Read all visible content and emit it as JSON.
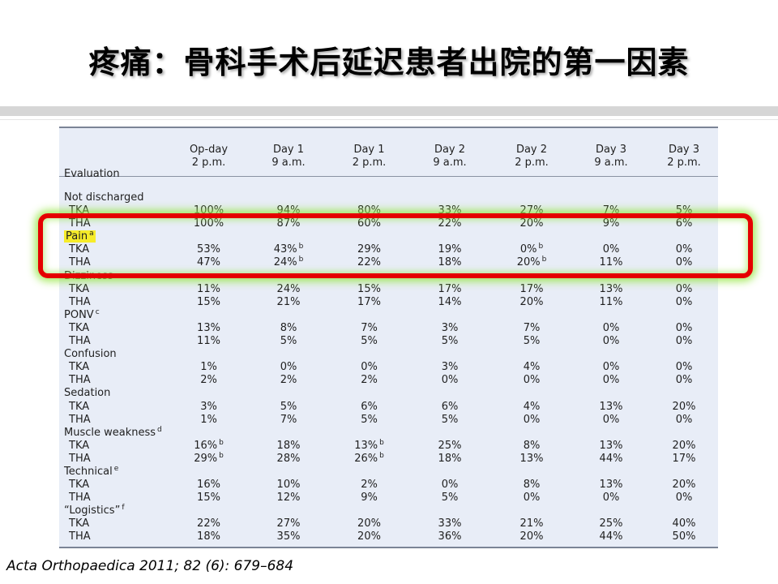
{
  "slide": {
    "title": "疼痛：骨科手术后延迟患者出院的第一因素",
    "citation": "Acta Orthopaedica 2011; 82 (6): 679–684"
  },
  "table": {
    "columns": [
      {
        "line1": "Evaluation",
        "line2": ""
      },
      {
        "line1": "Op-day",
        "line2": "2 p.m."
      },
      {
        "line1": "Day 1",
        "line2": "9 a.m."
      },
      {
        "line1": "Day 1",
        "line2": "2 p.m."
      },
      {
        "line1": "Day 2",
        "line2": "9 a.m."
      },
      {
        "line1": "Day 2",
        "line2": "2 p.m."
      },
      {
        "line1": "Day 3",
        "line2": "9 a.m."
      },
      {
        "line1": "Day 3",
        "line2": "2 p.m."
      }
    ],
    "groups": [
      {
        "label": "Not discharged",
        "sup": "",
        "highlight": false,
        "rows": [
          {
            "label": "TKA",
            "cells": [
              [
                "100%",
                ""
              ],
              [
                "94%",
                ""
              ],
              [
                "80%",
                ""
              ],
              [
                "33%",
                ""
              ],
              [
                "27%",
                ""
              ],
              [
                "7%",
                ""
              ],
              [
                "5%",
                ""
              ]
            ]
          },
          {
            "label": "THA",
            "cells": [
              [
                "100%",
                ""
              ],
              [
                "87%",
                ""
              ],
              [
                "60%",
                ""
              ],
              [
                "22%",
                ""
              ],
              [
                "20%",
                ""
              ],
              [
                "9%",
                ""
              ],
              [
                "6%",
                ""
              ]
            ]
          }
        ]
      },
      {
        "label": "Pain",
        "sup": "a",
        "highlight": true,
        "rows": [
          {
            "label": "TKA",
            "cells": [
              [
                "53%",
                ""
              ],
              [
                "43%",
                "b"
              ],
              [
                "29%",
                ""
              ],
              [
                "19%",
                ""
              ],
              [
                "0%",
                "b"
              ],
              [
                "0%",
                ""
              ],
              [
                "0%",
                ""
              ]
            ]
          },
          {
            "label": "THA",
            "cells": [
              [
                "47%",
                ""
              ],
              [
                "24%",
                "b"
              ],
              [
                "22%",
                ""
              ],
              [
                "18%",
                ""
              ],
              [
                "20%",
                "b"
              ],
              [
                "11%",
                ""
              ],
              [
                "0%",
                ""
              ]
            ]
          }
        ]
      },
      {
        "label": "Dizziness",
        "sup": "",
        "highlight": false,
        "rows": [
          {
            "label": "TKA",
            "cells": [
              [
                "11%",
                ""
              ],
              [
                "24%",
                ""
              ],
              [
                "15%",
                ""
              ],
              [
                "17%",
                ""
              ],
              [
                "17%",
                ""
              ],
              [
                "13%",
                ""
              ],
              [
                "0%",
                ""
              ]
            ]
          },
          {
            "label": "THA",
            "cells": [
              [
                "15%",
                ""
              ],
              [
                "21%",
                ""
              ],
              [
                "17%",
                ""
              ],
              [
                "14%",
                ""
              ],
              [
                "20%",
                ""
              ],
              [
                "11%",
                ""
              ],
              [
                "0%",
                ""
              ]
            ]
          }
        ]
      },
      {
        "label": "PONV",
        "sup": "c",
        "highlight": false,
        "rows": [
          {
            "label": "TKA",
            "cells": [
              [
                "13%",
                ""
              ],
              [
                "8%",
                ""
              ],
              [
                "7%",
                ""
              ],
              [
                "3%",
                ""
              ],
              [
                "7%",
                ""
              ],
              [
                "0%",
                ""
              ],
              [
                "0%",
                ""
              ]
            ]
          },
          {
            "label": "THA",
            "cells": [
              [
                "11%",
                ""
              ],
              [
                "5%",
                ""
              ],
              [
                "5%",
                ""
              ],
              [
                "5%",
                ""
              ],
              [
                "5%",
                ""
              ],
              [
                "0%",
                ""
              ],
              [
                "0%",
                ""
              ]
            ]
          }
        ]
      },
      {
        "label": "Confusion",
        "sup": "",
        "highlight": false,
        "rows": [
          {
            "label": "TKA",
            "cells": [
              [
                "1%",
                ""
              ],
              [
                "0%",
                ""
              ],
              [
                "0%",
                ""
              ],
              [
                "3%",
                ""
              ],
              [
                "4%",
                ""
              ],
              [
                "0%",
                ""
              ],
              [
                "0%",
                ""
              ]
            ]
          },
          {
            "label": "THA",
            "cells": [
              [
                "2%",
                ""
              ],
              [
                "2%",
                ""
              ],
              [
                "2%",
                ""
              ],
              [
                "0%",
                ""
              ],
              [
                "0%",
                ""
              ],
              [
                "0%",
                ""
              ],
              [
                "0%",
                ""
              ]
            ]
          }
        ]
      },
      {
        "label": "Sedation",
        "sup": "",
        "highlight": false,
        "rows": [
          {
            "label": "TKA",
            "cells": [
              [
                "3%",
                ""
              ],
              [
                "5%",
                ""
              ],
              [
                "6%",
                ""
              ],
              [
                "6%",
                ""
              ],
              [
                "4%",
                ""
              ],
              [
                "13%",
                ""
              ],
              [
                "20%",
                ""
              ]
            ]
          },
          {
            "label": "THA",
            "cells": [
              [
                "1%",
                ""
              ],
              [
                "7%",
                ""
              ],
              [
                "5%",
                ""
              ],
              [
                "5%",
                ""
              ],
              [
                "0%",
                ""
              ],
              [
                "0%",
                ""
              ],
              [
                "0%",
                ""
              ]
            ]
          }
        ]
      },
      {
        "label": "Muscle weakness",
        "sup": "d",
        "highlight": false,
        "rows": [
          {
            "label": "TKA",
            "cells": [
              [
                "16%",
                "b"
              ],
              [
                "18%",
                ""
              ],
              [
                "13%",
                "b"
              ],
              [
                "25%",
                ""
              ],
              [
                "8%",
                ""
              ],
              [
                "13%",
                ""
              ],
              [
                "20%",
                ""
              ]
            ]
          },
          {
            "label": "THA",
            "cells": [
              [
                "29%",
                "b"
              ],
              [
                "28%",
                ""
              ],
              [
                "26%",
                "b"
              ],
              [
                "18%",
                ""
              ],
              [
                "13%",
                ""
              ],
              [
                "44%",
                ""
              ],
              [
                "17%",
                ""
              ]
            ]
          }
        ]
      },
      {
        "label": "Technical",
        "sup": "e",
        "highlight": false,
        "rows": [
          {
            "label": "TKA",
            "cells": [
              [
                "16%",
                ""
              ],
              [
                "10%",
                ""
              ],
              [
                "2%",
                ""
              ],
              [
                "0%",
                ""
              ],
              [
                "8%",
                ""
              ],
              [
                "13%",
                ""
              ],
              [
                "20%",
                ""
              ]
            ]
          },
          {
            "label": "THA",
            "cells": [
              [
                "15%",
                ""
              ],
              [
                "12%",
                ""
              ],
              [
                "9%",
                ""
              ],
              [
                "5%",
                ""
              ],
              [
                "0%",
                ""
              ],
              [
                "0%",
                ""
              ],
              [
                "0%",
                ""
              ]
            ]
          }
        ]
      },
      {
        "label": "“Logistics”",
        "sup": "f",
        "highlight": false,
        "rows": [
          {
            "label": "TKA",
            "cells": [
              [
                "22%",
                ""
              ],
              [
                "27%",
                ""
              ],
              [
                "20%",
                ""
              ],
              [
                "33%",
                ""
              ],
              [
                "21%",
                ""
              ],
              [
                "25%",
                ""
              ],
              [
                "40%",
                ""
              ]
            ]
          },
          {
            "label": "THA",
            "cells": [
              [
                "18%",
                ""
              ],
              [
                "35%",
                ""
              ],
              [
                "20%",
                ""
              ],
              [
                "36%",
                ""
              ],
              [
                "20%",
                ""
              ],
              [
                "44%",
                ""
              ],
              [
                "50%",
                ""
              ]
            ]
          }
        ]
      }
    ]
  },
  "colors": {
    "table_background": "#e8edf7",
    "callout_border": "#e50000",
    "callout_glow": "#96e646",
    "label_highlight": "#f6ec2a"
  }
}
